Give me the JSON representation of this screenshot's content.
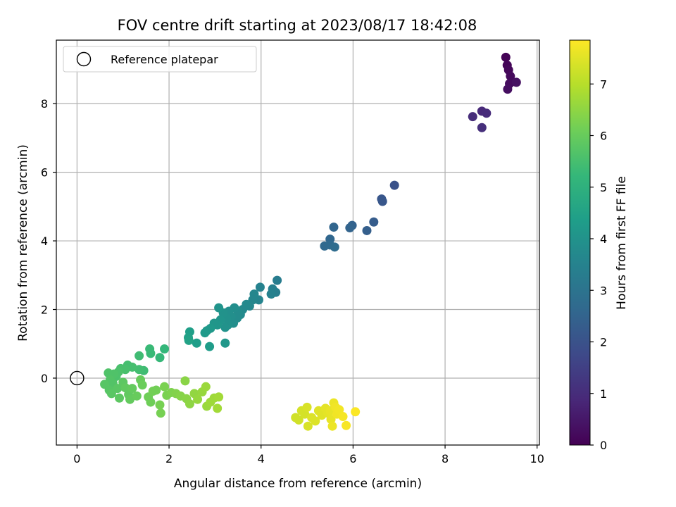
{
  "chart_data": {
    "type": "scatter",
    "title": "FOV centre drift starting at 2023/08/17 18:42:08",
    "xlabel": "Angular distance from reference (arcmin)",
    "ylabel": "Rotation from reference (arcmin)",
    "xlim": [
      -0.45,
      10.05
    ],
    "ylim": [
      -1.95,
      9.85
    ],
    "xticks": [
      0,
      2,
      4,
      6,
      8,
      10
    ],
    "yticks": [
      0,
      2,
      4,
      6,
      8
    ],
    "grid": true,
    "legend": {
      "placement": "upper-left",
      "entries": [
        "Reference platepar"
      ]
    },
    "reference_point": {
      "x": 0,
      "y": 0
    },
    "colorbar": {
      "label": "Hours from first FF file",
      "colormap": "viridis",
      "range": [
        0,
        7.85
      ],
      "ticks": [
        0,
        1,
        2,
        3,
        4,
        5,
        6,
        7
      ]
    },
    "colormap_stops": [
      "#440154",
      "#482878",
      "#3e4989",
      "#31688e",
      "#26828e",
      "#1f9e89",
      "#35b779",
      "#6ece58",
      "#b5de2b",
      "#fde725"
    ],
    "points": [
      {
        "x": 9.32,
        "y": 9.35,
        "h": 0.05
      },
      {
        "x": 9.35,
        "y": 9.12,
        "h": 0.1
      },
      {
        "x": 9.38,
        "y": 8.98,
        "h": 0.15
      },
      {
        "x": 9.42,
        "y": 8.8,
        "h": 0.2
      },
      {
        "x": 9.4,
        "y": 8.58,
        "h": 0.25
      },
      {
        "x": 9.36,
        "y": 8.42,
        "h": 0.3
      },
      {
        "x": 9.55,
        "y": 8.62,
        "h": 0.35
      },
      {
        "x": 8.8,
        "y": 7.78,
        "h": 0.9
      },
      {
        "x": 8.9,
        "y": 7.72,
        "h": 0.95
      },
      {
        "x": 8.6,
        "y": 7.62,
        "h": 1.0
      },
      {
        "x": 8.8,
        "y": 7.3,
        "h": 1.05
      },
      {
        "x": 6.9,
        "y": 5.62,
        "h": 2.0
      },
      {
        "x": 6.62,
        "y": 5.22,
        "h": 2.1
      },
      {
        "x": 6.64,
        "y": 5.15,
        "h": 2.15
      },
      {
        "x": 6.45,
        "y": 4.55,
        "h": 2.3
      },
      {
        "x": 6.3,
        "y": 4.3,
        "h": 2.35
      },
      {
        "x": 5.98,
        "y": 4.45,
        "h": 2.45
      },
      {
        "x": 5.93,
        "y": 4.38,
        "h": 2.5
      },
      {
        "x": 5.58,
        "y": 4.4,
        "h": 2.55
      },
      {
        "x": 5.5,
        "y": 4.05,
        "h": 2.6
      },
      {
        "x": 5.38,
        "y": 3.85,
        "h": 2.65
      },
      {
        "x": 5.5,
        "y": 3.88,
        "h": 2.7
      },
      {
        "x": 5.6,
        "y": 3.82,
        "h": 2.75
      },
      {
        "x": 4.35,
        "y": 2.85,
        "h": 3.3
      },
      {
        "x": 4.32,
        "y": 2.5,
        "h": 3.35
      },
      {
        "x": 4.25,
        "y": 2.6,
        "h": 3.4
      },
      {
        "x": 4.22,
        "y": 2.45,
        "h": 3.45
      },
      {
        "x": 3.98,
        "y": 2.65,
        "h": 3.5
      },
      {
        "x": 3.95,
        "y": 2.28,
        "h": 3.55
      },
      {
        "x": 3.85,
        "y": 2.45,
        "h": 3.6
      },
      {
        "x": 3.82,
        "y": 2.28,
        "h": 3.6
      },
      {
        "x": 3.75,
        "y": 2.1,
        "h": 3.65
      },
      {
        "x": 3.68,
        "y": 2.15,
        "h": 3.7
      },
      {
        "x": 3.6,
        "y": 2.0,
        "h": 3.7
      },
      {
        "x": 3.55,
        "y": 1.85,
        "h": 3.75
      },
      {
        "x": 3.5,
        "y": 1.95,
        "h": 3.8
      },
      {
        "x": 3.48,
        "y": 1.75,
        "h": 3.8
      },
      {
        "x": 3.42,
        "y": 2.05,
        "h": 3.85
      },
      {
        "x": 3.4,
        "y": 1.6,
        "h": 3.85
      },
      {
        "x": 3.35,
        "y": 1.8,
        "h": 3.9
      },
      {
        "x": 3.3,
        "y": 1.95,
        "h": 3.9
      },
      {
        "x": 3.28,
        "y": 1.55,
        "h": 3.95
      },
      {
        "x": 3.25,
        "y": 1.75,
        "h": 3.95
      },
      {
        "x": 3.22,
        "y": 1.48,
        "h": 4.0
      },
      {
        "x": 3.18,
        "y": 1.9,
        "h": 4.0
      },
      {
        "x": 3.12,
        "y": 1.7,
        "h": 4.05
      },
      {
        "x": 3.08,
        "y": 2.05,
        "h": 4.05
      },
      {
        "x": 3.05,
        "y": 1.55,
        "h": 4.1
      },
      {
        "x": 2.98,
        "y": 1.6,
        "h": 4.1
      },
      {
        "x": 3.22,
        "y": 1.02,
        "h": 4.15
      },
      {
        "x": 2.9,
        "y": 1.45,
        "h": 4.2
      },
      {
        "x": 2.82,
        "y": 1.38,
        "h": 4.2
      },
      {
        "x": 2.78,
        "y": 1.32,
        "h": 4.25
      },
      {
        "x": 2.88,
        "y": 0.92,
        "h": 4.3
      },
      {
        "x": 2.6,
        "y": 1.02,
        "h": 4.35
      },
      {
        "x": 2.45,
        "y": 1.35,
        "h": 4.4
      },
      {
        "x": 2.42,
        "y": 1.18,
        "h": 4.45
      },
      {
        "x": 2.43,
        "y": 1.1,
        "h": 4.5
      },
      {
        "x": 1.9,
        "y": 0.85,
        "h": 5.2
      },
      {
        "x": 1.8,
        "y": 0.6,
        "h": 5.25
      },
      {
        "x": 1.58,
        "y": 0.85,
        "h": 5.3
      },
      {
        "x": 1.6,
        "y": 0.72,
        "h": 5.3
      },
      {
        "x": 1.45,
        "y": 0.22,
        "h": 5.4
      },
      {
        "x": 1.35,
        "y": 0.65,
        "h": 5.4
      },
      {
        "x": 1.35,
        "y": 0.25,
        "h": 5.45
      },
      {
        "x": 1.2,
        "y": 0.32,
        "h": 5.5
      },
      {
        "x": 1.1,
        "y": 0.38,
        "h": 5.5
      },
      {
        "x": 1.05,
        "y": 0.25,
        "h": 5.55
      },
      {
        "x": 0.95,
        "y": 0.28,
        "h": 5.55
      },
      {
        "x": 0.9,
        "y": 0.18,
        "h": 5.6
      },
      {
        "x": 0.85,
        "y": 0.05,
        "h": 5.6
      },
      {
        "x": 0.8,
        "y": 0.12,
        "h": 5.65
      },
      {
        "x": 0.68,
        "y": 0.15,
        "h": 5.65
      },
      {
        "x": 0.72,
        "y": -0.05,
        "h": 5.7
      },
      {
        "x": 0.78,
        "y": -0.15,
        "h": 5.7
      },
      {
        "x": 0.6,
        "y": -0.18,
        "h": 5.75
      },
      {
        "x": 0.7,
        "y": -0.35,
        "h": 5.75
      },
      {
        "x": 0.75,
        "y": -0.45,
        "h": 5.8
      },
      {
        "x": 0.88,
        "y": -0.3,
        "h": 5.8
      },
      {
        "x": 0.92,
        "y": -0.58,
        "h": 5.85
      },
      {
        "x": 1.0,
        "y": -0.12,
        "h": 5.85
      },
      {
        "x": 1.05,
        "y": -0.28,
        "h": 5.9
      },
      {
        "x": 1.12,
        "y": -0.48,
        "h": 5.9
      },
      {
        "x": 1.15,
        "y": -0.62,
        "h": 5.95
      },
      {
        "x": 1.2,
        "y": -0.3,
        "h": 5.95
      },
      {
        "x": 1.3,
        "y": -0.52,
        "h": 6.0
      },
      {
        "x": 1.38,
        "y": -0.05,
        "h": 6.0
      },
      {
        "x": 1.42,
        "y": -0.2,
        "h": 6.05
      },
      {
        "x": 1.55,
        "y": -0.55,
        "h": 6.1
      },
      {
        "x": 1.6,
        "y": -0.7,
        "h": 6.1
      },
      {
        "x": 1.65,
        "y": -0.38,
        "h": 6.15
      },
      {
        "x": 1.72,
        "y": -0.35,
        "h": 6.15
      },
      {
        "x": 1.8,
        "y": -0.78,
        "h": 6.2
      },
      {
        "x": 1.82,
        "y": -1.02,
        "h": 6.2
      },
      {
        "x": 1.9,
        "y": -0.25,
        "h": 6.25
      },
      {
        "x": 1.95,
        "y": -0.5,
        "h": 6.25
      },
      {
        "x": 2.05,
        "y": -0.42,
        "h": 6.3
      },
      {
        "x": 2.15,
        "y": -0.45,
        "h": 6.35
      },
      {
        "x": 2.25,
        "y": -0.52,
        "h": 6.4
      },
      {
        "x": 2.35,
        "y": -0.08,
        "h": 6.45
      },
      {
        "x": 2.38,
        "y": -0.6,
        "h": 6.45
      },
      {
        "x": 2.45,
        "y": -0.75,
        "h": 6.5
      },
      {
        "x": 2.55,
        "y": -0.45,
        "h": 6.55
      },
      {
        "x": 2.62,
        "y": -0.62,
        "h": 6.6
      },
      {
        "x": 2.72,
        "y": -0.4,
        "h": 6.6
      },
      {
        "x": 2.8,
        "y": -0.25,
        "h": 6.65
      },
      {
        "x": 2.82,
        "y": -0.82,
        "h": 6.65
      },
      {
        "x": 2.9,
        "y": -0.7,
        "h": 6.7
      },
      {
        "x": 2.98,
        "y": -0.58,
        "h": 6.7
      },
      {
        "x": 3.05,
        "y": -0.88,
        "h": 6.75
      },
      {
        "x": 3.08,
        "y": -0.55,
        "h": 6.75
      },
      {
        "x": 4.75,
        "y": -1.15,
        "h": 7.3
      },
      {
        "x": 4.82,
        "y": -1.22,
        "h": 7.3
      },
      {
        "x": 4.88,
        "y": -0.95,
        "h": 7.35
      },
      {
        "x": 4.95,
        "y": -1.05,
        "h": 7.35
      },
      {
        "x": 5.0,
        "y": -0.85,
        "h": 7.4
      },
      {
        "x": 5.02,
        "y": -1.4,
        "h": 7.4
      },
      {
        "x": 5.1,
        "y": -1.15,
        "h": 7.45
      },
      {
        "x": 5.18,
        "y": -1.25,
        "h": 7.45
      },
      {
        "x": 5.25,
        "y": -0.95,
        "h": 7.5
      },
      {
        "x": 5.32,
        "y": -1.08,
        "h": 7.5
      },
      {
        "x": 5.4,
        "y": -0.88,
        "h": 7.55
      },
      {
        "x": 5.45,
        "y": -1.02,
        "h": 7.55
      },
      {
        "x": 5.5,
        "y": -0.95,
        "h": 7.6
      },
      {
        "x": 5.52,
        "y": -1.2,
        "h": 7.6
      },
      {
        "x": 5.55,
        "y": -1.4,
        "h": 7.65
      },
      {
        "x": 5.58,
        "y": -0.72,
        "h": 7.65
      },
      {
        "x": 5.62,
        "y": -0.85,
        "h": 7.7
      },
      {
        "x": 5.65,
        "y": -1.05,
        "h": 7.7
      },
      {
        "x": 5.7,
        "y": -0.92,
        "h": 7.72
      },
      {
        "x": 5.78,
        "y": -1.12,
        "h": 7.75
      },
      {
        "x": 5.85,
        "y": -1.38,
        "h": 7.78
      },
      {
        "x": 6.05,
        "y": -0.98,
        "h": 7.82
      }
    ]
  }
}
